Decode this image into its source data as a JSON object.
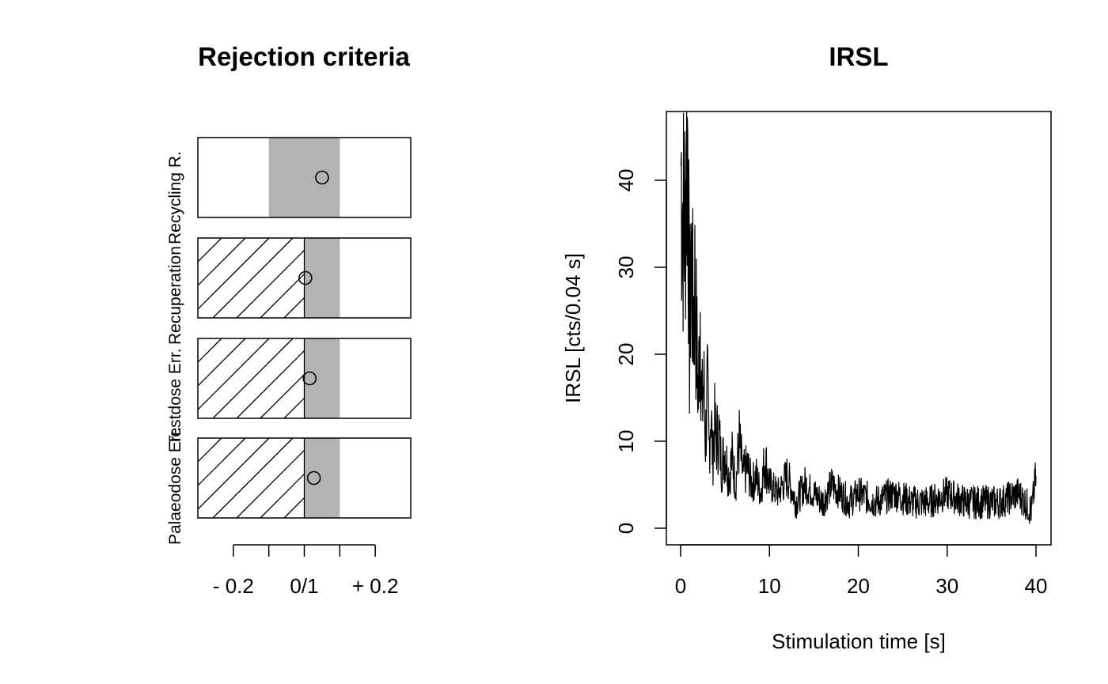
{
  "chart_data": [
    {
      "type": "other",
      "title": "Rejection criteria",
      "criteria": [
        {
          "label": "Recycling R.",
          "value": 0.05,
          "hatched": false,
          "band": [
            -0.1,
            0.1
          ]
        },
        {
          "label": "Recuperation",
          "value": 0.003,
          "hatched": true,
          "band": [
            0.0,
            0.1
          ]
        },
        {
          "label": "Testdose Err.",
          "value": 0.015,
          "hatched": true,
          "band": [
            0.0,
            0.1
          ]
        },
        {
          "label": "Palaeodose Err.",
          "value": 0.027,
          "hatched": true,
          "band": [
            0.0,
            0.1
          ]
        }
      ],
      "xlim": [
        -0.3,
        0.3
      ],
      "xticks": [
        -0.2,
        -0.1,
        0,
        0.1,
        0.2
      ],
      "xtick_labels": [
        "- 0.2",
        "",
        "0/1",
        "",
        "+ 0.2"
      ],
      "colors": {
        "band": "#b3b3b3"
      }
    },
    {
      "type": "line",
      "title": "IRSL",
      "xlabel": "Stimulation time [s]",
      "ylabel": "IRSL [cts/0.04 s]",
      "xlim": [
        0,
        40
      ],
      "ylim": [
        0,
        46
      ],
      "xticks": [
        0,
        10,
        20,
        30,
        40
      ],
      "yticks": [
        0,
        10,
        20,
        30,
        40
      ],
      "series": [
        {
          "x": [
            0.04,
            0.2,
            0.4,
            0.6,
            0.8,
            1.0,
            1.2,
            1.4,
            1.6,
            1.8,
            2.0,
            2.2,
            2.4,
            2.6,
            2.8,
            3.0,
            3.2,
            3.4,
            3.6,
            3.8,
            4.0,
            4.3,
            4.6,
            5.0,
            5.4,
            5.8,
            6.2,
            6.6,
            7.0,
            7.5,
            8.0,
            8.5,
            9.0,
            9.5,
            10.0,
            11,
            12,
            13,
            14,
            15,
            16,
            17,
            18,
            19,
            20,
            22,
            24,
            26,
            28,
            30,
            32,
            34,
            36,
            38,
            39.5,
            40
          ],
          "y": [
            42,
            38,
            34,
            40,
            46,
            20,
            32,
            24,
            28,
            21,
            15,
            26,
            13,
            17,
            10,
            16,
            9,
            14,
            8,
            12,
            10,
            11,
            7,
            9,
            6,
            8,
            5,
            10,
            6,
            7,
            5,
            6,
            4,
            8,
            5,
            4,
            6,
            3,
            5,
            4,
            3,
            5,
            4,
            3,
            4,
            3,
            4,
            3,
            3,
            4,
            3,
            3,
            3,
            4,
            2,
            6
          ]
        }
      ],
      "colors": {
        "line": "#000000"
      }
    }
  ]
}
